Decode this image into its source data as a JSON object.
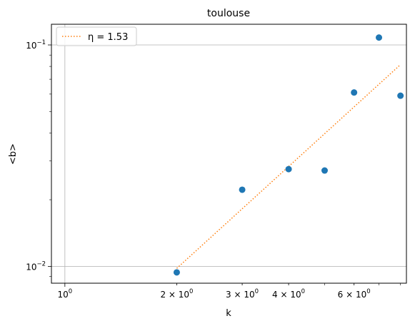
{
  "chart_data": {
    "type": "scatter",
    "title": "toulouse",
    "xlabel": "k",
    "ylabel": "<b>",
    "xscale": "log",
    "yscale": "log",
    "xlim": [
      0.92,
      8.3
    ],
    "ylim": [
      0.0084,
      0.124
    ],
    "grid": true,
    "legend_placement": "top-left",
    "x_ticks": [
      {
        "value": 1,
        "base": "10",
        "exp": "0",
        "mantissa": ""
      },
      {
        "value": 2,
        "base": "10",
        "exp": "0",
        "mantissa": "2 × "
      },
      {
        "value": 3,
        "base": "10",
        "exp": "0",
        "mantissa": "3 × "
      },
      {
        "value": 4,
        "base": "10",
        "exp": "0",
        "mantissa": "4 × "
      },
      {
        "value": 6,
        "base": "10",
        "exp": "0",
        "mantissa": "6 × "
      }
    ],
    "y_ticks": [
      {
        "value": 0.01,
        "base": "10",
        "exp": "−2"
      },
      {
        "value": 0.1,
        "base": "10",
        "exp": "−1"
      }
    ],
    "series": [
      {
        "kind": "scatter",
        "color": "#1f77b4",
        "x": [
          2,
          3,
          4,
          5,
          6,
          7,
          8
        ],
        "y": [
          0.0094,
          0.0222,
          0.0275,
          0.0271,
          0.061,
          0.108,
          0.059
        ]
      },
      {
        "kind": "line",
        "name": "η = 1.53",
        "color": "#ff7f0e",
        "x": [
          2,
          8
        ],
        "y": [
          0.0098,
          0.0815
        ]
      }
    ]
  }
}
